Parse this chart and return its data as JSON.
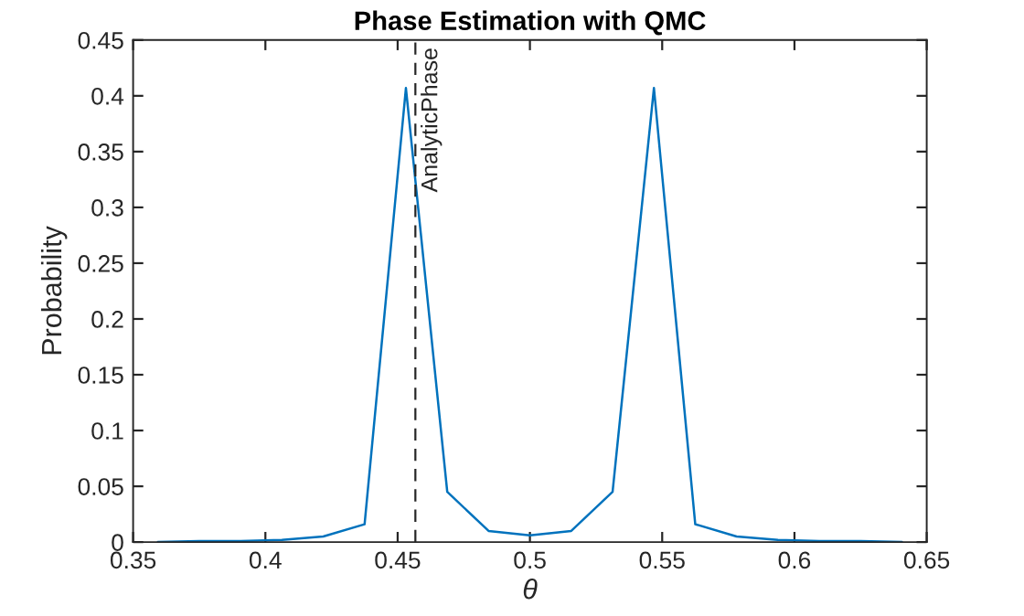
{
  "chart_data": {
    "type": "line",
    "title": "Phase Estimation with QMC",
    "xlabel": "θ",
    "ylabel": "Probability",
    "x": [
      0.359375,
      0.375,
      0.390625,
      0.40625,
      0.421875,
      0.4375,
      0.453125,
      0.46875,
      0.484375,
      0.5,
      0.515625,
      0.53125,
      0.546875,
      0.5625,
      0.578125,
      0.59375,
      0.609375,
      0.625,
      0.640625
    ],
    "series": [
      {
        "color": "#0072bd",
        "values": [
          0,
          0.001,
          0.001,
          0.002,
          0.005,
          0.016,
          0.407,
          0.045,
          0.01,
          0.006,
          0.01,
          0.045,
          0.407,
          0.016,
          0.005,
          0.002,
          0.001,
          0.001,
          0
        ]
      }
    ],
    "xlim": [
      0.35,
      0.65
    ],
    "xticks": [
      0.35,
      0.4,
      0.45,
      0.5,
      0.55,
      0.6,
      0.65
    ],
    "ylim": [
      0,
      0.45
    ],
    "yticks": [
      0,
      0.05,
      0.1,
      0.15,
      0.2,
      0.25,
      0.3,
      0.35,
      0.4,
      0.45
    ],
    "ref_lines": [
      {
        "axis": "x",
        "value": 0.4567,
        "label": "AnalyticPhase",
        "color": "#262626",
        "line_style": "dashed"
      }
    ],
    "grid": false,
    "legend": false
  }
}
